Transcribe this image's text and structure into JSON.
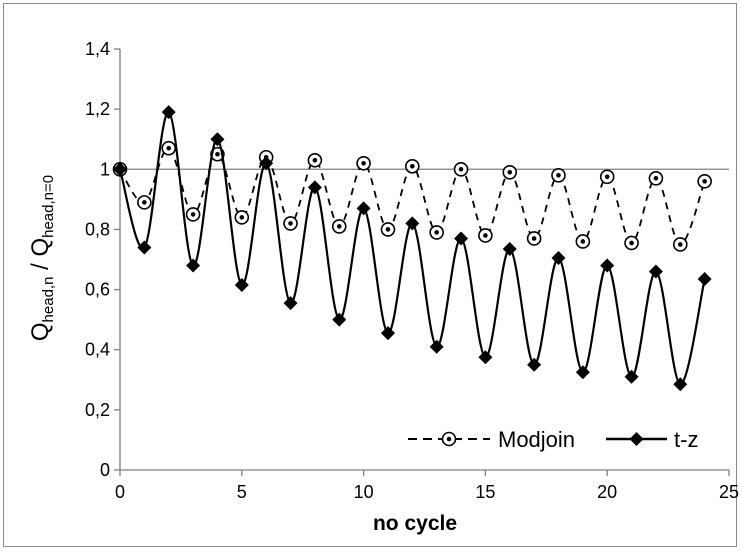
{
  "chart_data": {
    "type": "line",
    "xlabel": "no cycle",
    "ylabel": {
      "parts": [
        {
          "text": "Q",
          "sub": false
        },
        {
          "text": "head,n",
          "sub": true
        },
        {
          "text": " / Q",
          "sub": false
        },
        {
          "text": "head,n=0",
          "sub": true
        }
      ]
    },
    "xlim": [
      0,
      25
    ],
    "ylim": [
      0,
      1.4
    ],
    "x_ticks": [
      "0",
      "5",
      "10",
      "15",
      "20",
      "25"
    ],
    "y_ticks": [
      "0",
      "0,2",
      "0,4",
      "0,6",
      "0,8",
      "1",
      "1,2",
      "1,4"
    ],
    "x_tick_values": [
      0,
      5,
      10,
      15,
      20,
      25
    ],
    "y_tick_values": [
      0,
      0.2,
      0.4,
      0.6,
      0.8,
      1.0,
      1.2,
      1.4
    ],
    "reference_line": 1.0,
    "legend_position": "bottom-right",
    "series": [
      {
        "name": "Modjoin",
        "style": "dashed",
        "marker": "open-circle",
        "color": "#000000",
        "x": [
          0,
          1,
          2,
          3,
          4,
          5,
          6,
          7,
          8,
          9,
          10,
          11,
          12,
          13,
          14,
          15,
          16,
          17,
          18,
          19,
          20,
          21,
          22,
          23,
          24
        ],
        "y": [
          1.0,
          0.89,
          1.07,
          0.85,
          1.05,
          0.84,
          1.04,
          0.82,
          1.03,
          0.81,
          1.02,
          0.8,
          1.01,
          0.79,
          1.0,
          0.78,
          0.99,
          0.77,
          0.98,
          0.76,
          0.975,
          0.755,
          0.97,
          0.75,
          0.96
        ]
      },
      {
        "name": "t-z",
        "style": "solid",
        "marker": "filled-diamond",
        "color": "#000000",
        "x": [
          0,
          1,
          2,
          3,
          4,
          5,
          6,
          7,
          8,
          9,
          10,
          11,
          12,
          13,
          14,
          15,
          16,
          17,
          18,
          19,
          20,
          21,
          22,
          23,
          24
        ],
        "y": [
          1.0,
          0.74,
          1.19,
          0.68,
          1.1,
          0.615,
          1.02,
          0.555,
          0.94,
          0.5,
          0.87,
          0.455,
          0.82,
          0.41,
          0.77,
          0.375,
          0.735,
          0.35,
          0.705,
          0.325,
          0.68,
          0.31,
          0.66,
          0.285,
          0.635
        ]
      }
    ]
  }
}
